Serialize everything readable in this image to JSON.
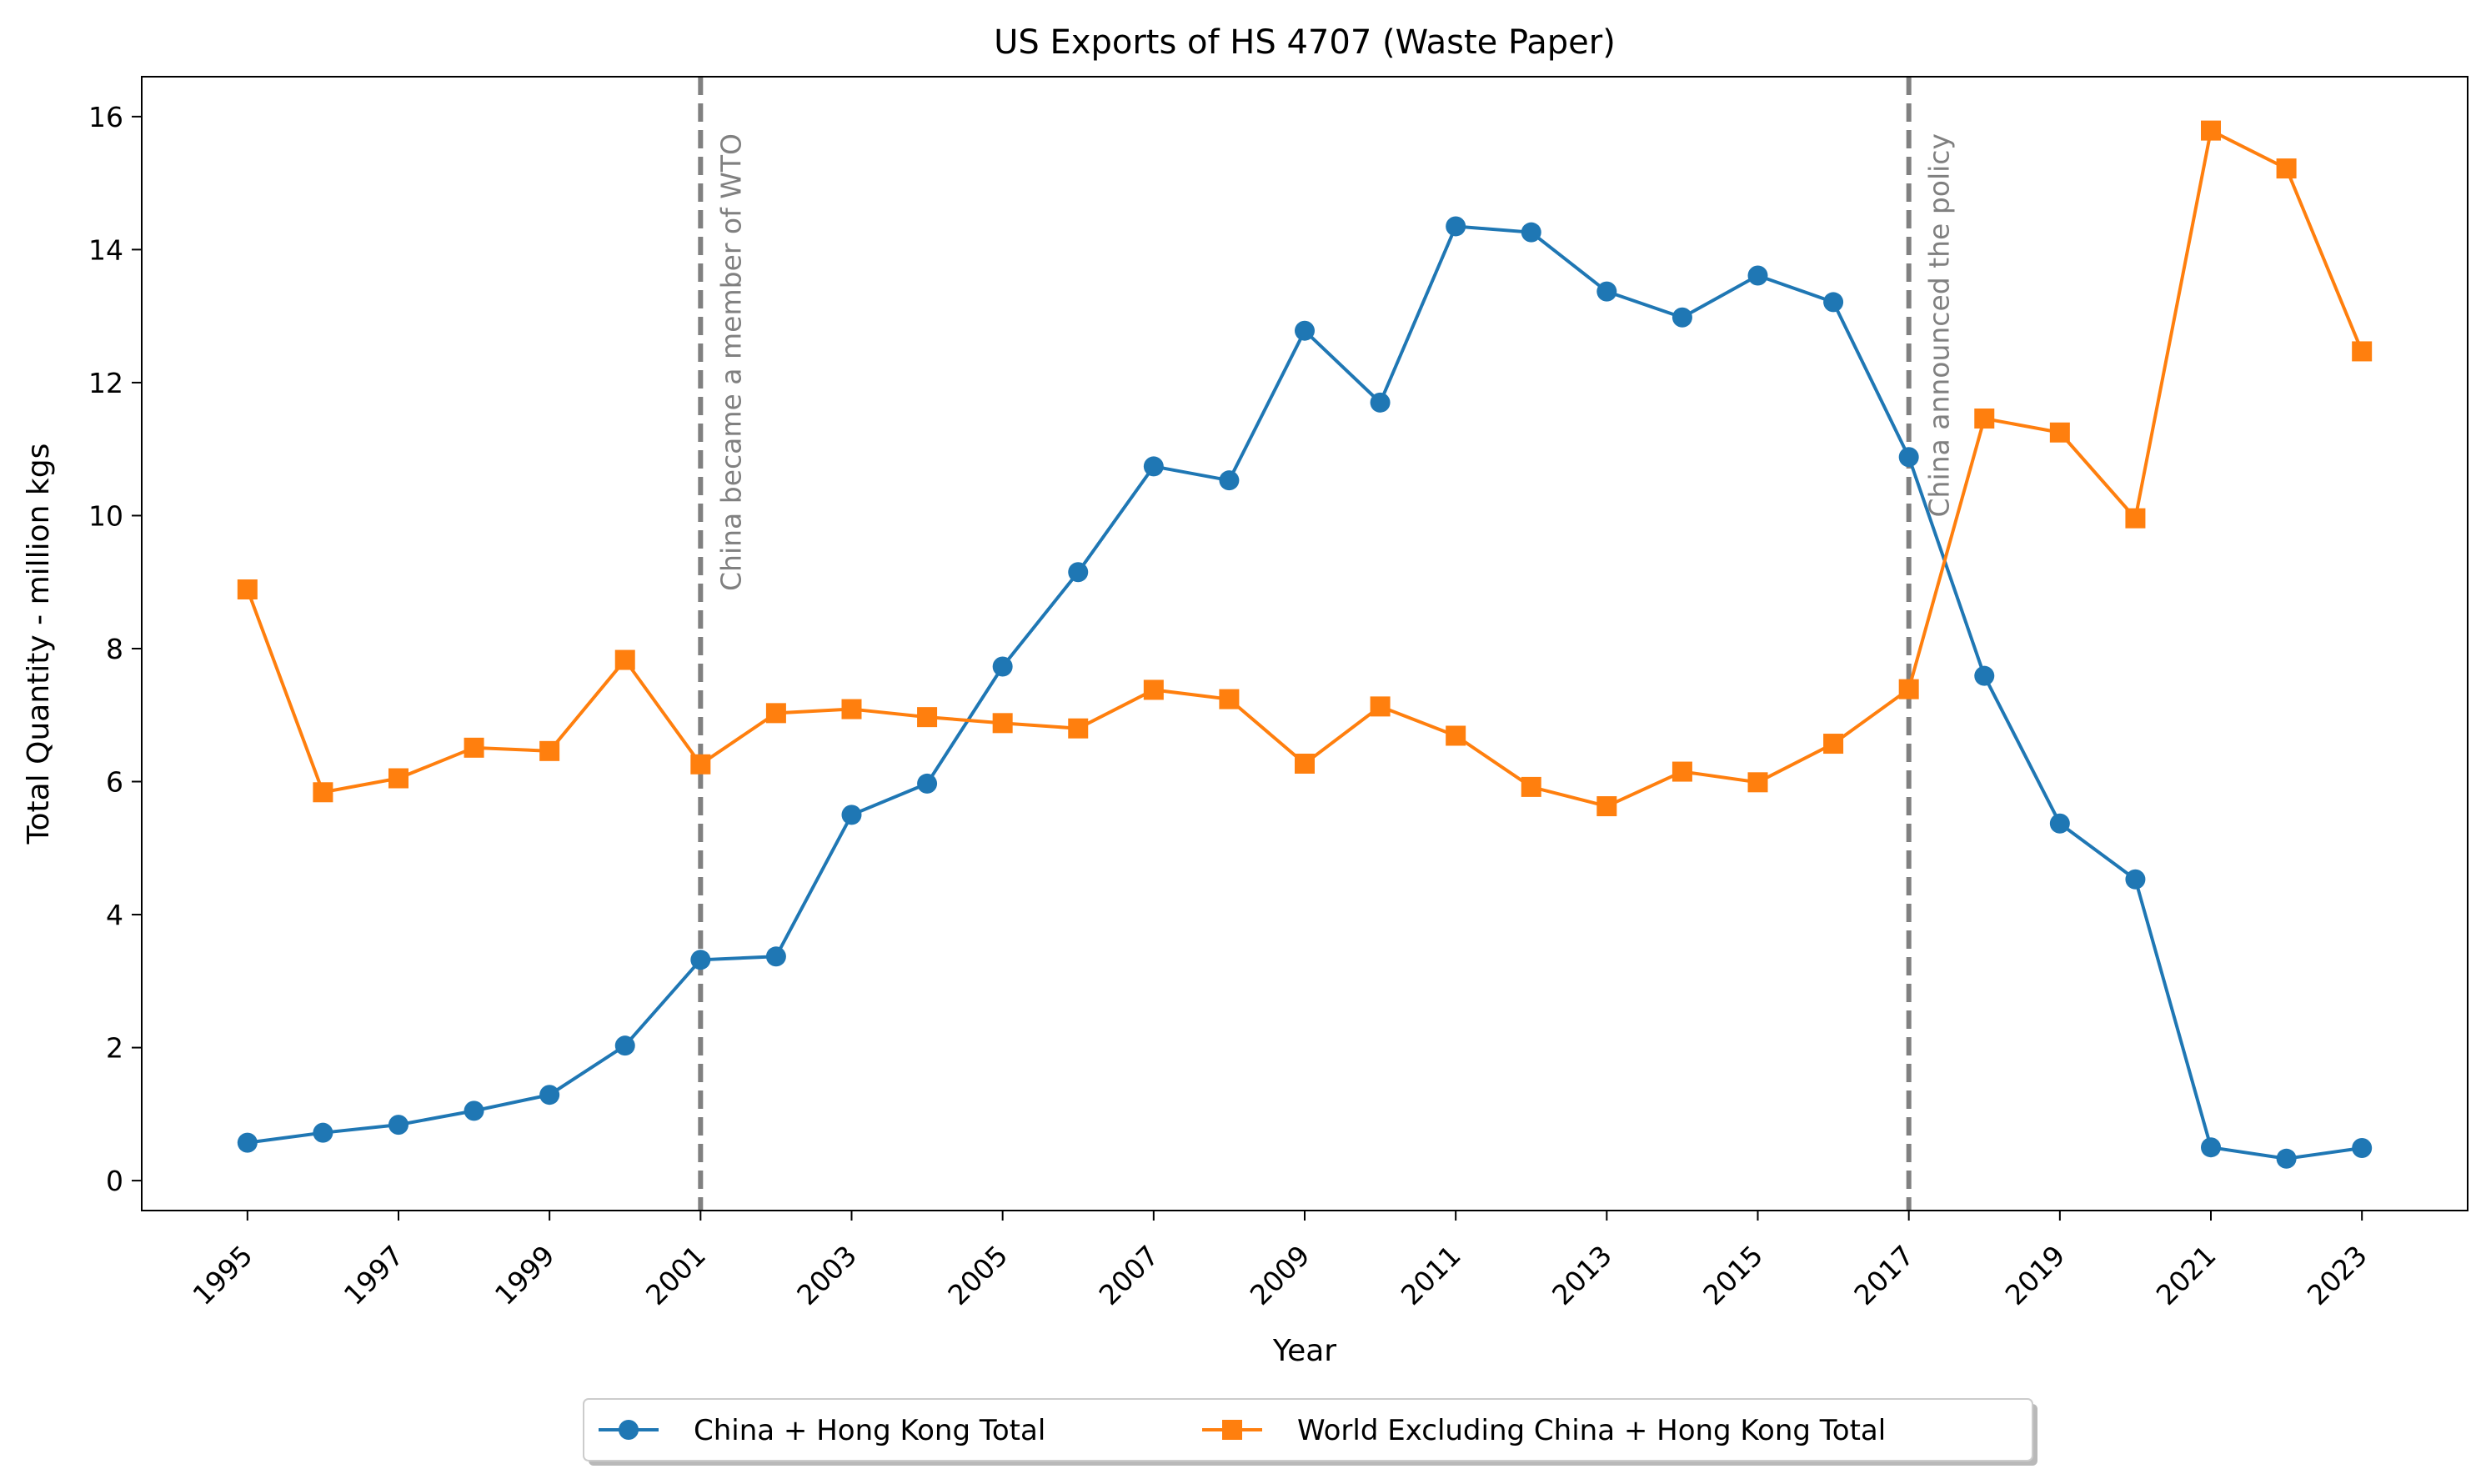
{
  "chart_data": {
    "type": "line",
    "title": "US Exports of HS 4707 (Waste Paper)",
    "xlabel": "Year",
    "ylabel": "Total Quantity - million kgs",
    "x": [
      1995,
      1996,
      1997,
      1998,
      1999,
      2000,
      2001,
      2002,
      2003,
      2004,
      2005,
      2006,
      2007,
      2008,
      2009,
      2010,
      2011,
      2012,
      2013,
      2014,
      2015,
      2016,
      2017,
      2018,
      2019,
      2020,
      2021,
      2022,
      2023
    ],
    "xticks": [
      "1995",
      "1997",
      "1999",
      "2001",
      "2003",
      "2005",
      "2007",
      "2009",
      "2011",
      "2013",
      "2015",
      "2017",
      "2019",
      "2021",
      "2023"
    ],
    "yticks": [
      "0",
      "2",
      "4",
      "6",
      "8",
      "10",
      "12",
      "14",
      "16"
    ],
    "xlim": [
      1993.6,
      2024.4
    ],
    "ylim": [
      -0.45,
      16.6
    ],
    "grid": false,
    "legend_position": "bottom-center, below axes",
    "series": [
      {
        "name": "China + Hong Kong Total",
        "color": "#1f77b4",
        "marker": "circle",
        "values": [
          0.57,
          0.72,
          0.84,
          1.05,
          1.29,
          2.03,
          3.32,
          3.37,
          5.5,
          5.97,
          7.73,
          9.15,
          10.74,
          10.53,
          12.78,
          11.7,
          14.35,
          14.26,
          13.37,
          12.98,
          13.61,
          13.21,
          10.88,
          7.59,
          5.37,
          4.53,
          0.5,
          0.33,
          0.49
        ]
      },
      {
        "name": "World Excluding China + Hong Kong Total",
        "color": "#ff7f0e",
        "marker": "square",
        "values": [
          8.89,
          5.84,
          6.05,
          6.51,
          6.46,
          7.83,
          6.26,
          7.03,
          7.09,
          6.97,
          6.88,
          6.8,
          7.38,
          7.24,
          6.27,
          7.13,
          6.69,
          5.92,
          5.63,
          6.15,
          5.99,
          6.57,
          7.39,
          11.46,
          11.25,
          9.96,
          15.79,
          15.22,
          12.47
        ]
      }
    ],
    "annotations": [
      {
        "x": 2001,
        "text": "China became a member of WTO",
        "color": "#808080",
        "style": "dashed-vertical-line"
      },
      {
        "x": 2017,
        "text": "China announced the policy",
        "color": "#808080",
        "style": "dashed-vertical-line"
      }
    ]
  }
}
